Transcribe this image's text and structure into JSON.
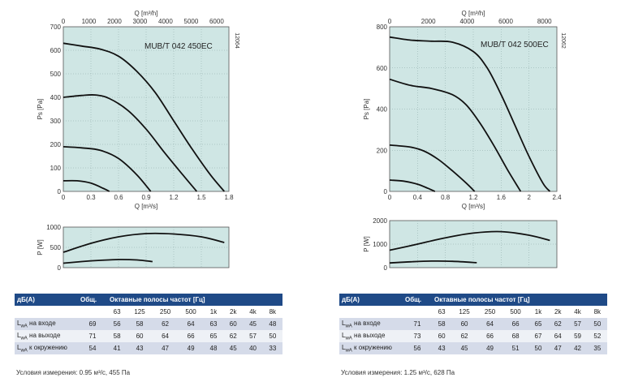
{
  "panels": [
    {
      "model": "MUB/T 042 450EC",
      "code": "12064",
      "ps_chart": {
        "type": "line",
        "xlabel": "Q [m³/s]",
        "x2label": "Q [m³/h]",
        "ylabel": "Ps [Pa]",
        "xlim": [
          0,
          1.8
        ],
        "ylim": [
          0,
          700
        ],
        "x_ticks": [
          "0",
          "0.3",
          "0.6",
          "0.9",
          "1.2",
          "1.5",
          "1.8"
        ],
        "x2_ticks": [
          "0",
          "1000",
          "2000",
          "3000",
          "4000",
          "5000",
          "6000"
        ],
        "x2_max": 6480,
        "y_ticks": [
          "0",
          "100",
          "200",
          "300",
          "400",
          "500",
          "600",
          "700"
        ],
        "series": [
          {
            "x": [
              0,
              0.2,
              0.4,
              0.6,
              0.8,
              1.0,
              1.2,
              1.4,
              1.6,
              1.75
            ],
            "y": [
              630,
              618,
              605,
              575,
              510,
              420,
              300,
              180,
              70,
              0
            ]
          },
          {
            "x": [
              0,
              0.2,
              0.35,
              0.5,
              0.7,
              0.9,
              1.1,
              1.3,
              1.45
            ],
            "y": [
              400,
              408,
              410,
              395,
              345,
              265,
              165,
              70,
              0
            ]
          },
          {
            "x": [
              0,
              0.2,
              0.4,
              0.6,
              0.8,
              0.95
            ],
            "y": [
              190,
              185,
              175,
              140,
              70,
              0
            ]
          },
          {
            "x": [
              0,
              0.15,
              0.3,
              0.45,
              0.5
            ],
            "y": [
              45,
              45,
              35,
              10,
              0
            ]
          }
        ]
      },
      "p_chart": {
        "type": "line",
        "ylabel": "P [W]",
        "xlim": [
          0,
          1.8
        ],
        "ylim": [
          0,
          1000
        ],
        "y_ticks": [
          "0",
          "500",
          "1000"
        ],
        "series": [
          {
            "x": [
              0,
              0.3,
              0.6,
              0.9,
              1.2,
              1.5,
              1.75
            ],
            "y": [
              380,
              600,
              760,
              840,
              830,
              760,
              620
            ]
          },
          {
            "x": [
              0,
              0.2,
              0.4,
              0.6,
              0.8,
              0.97
            ],
            "y": [
              110,
              150,
              180,
              200,
              190,
              150
            ]
          }
        ]
      },
      "sound": {
        "header_label": "дБ(A)",
        "header_total": "Общ.",
        "header_bands": "Октавные полосы частот [Гц]",
        "freqs": [
          "63",
          "125",
          "250",
          "500",
          "1k",
          "2k",
          "4k",
          "8k"
        ],
        "rows": [
          {
            "sub": "wA",
            "label": " на входе",
            "total": "69",
            "values": [
              "56",
              "58",
              "62",
              "64",
              "63",
              "60",
              "45",
              "48"
            ]
          },
          {
            "sub": "wA",
            "label": " на выходе",
            "total": "71",
            "values": [
              "58",
              "60",
              "64",
              "66",
              "65",
              "62",
              "57",
              "50"
            ]
          },
          {
            "sub": "wA",
            "label": " к окружению",
            "total": "54",
            "values": [
              "41",
              "43",
              "47",
              "49",
              "48",
              "45",
              "40",
              "33"
            ]
          }
        ],
        "condition": "Условия измерения: 0.95 м³/с, 455 Па"
      }
    },
    {
      "model": "MUB/T 042 500EC",
      "code": "12062",
      "ps_chart": {
        "type": "line",
        "xlabel": "Q [m³/s]",
        "x2label": "Q [m³/h]",
        "ylabel": "Ps [Pa]",
        "xlim": [
          0,
          2.4
        ],
        "ylim": [
          0,
          800
        ],
        "x_ticks": [
          "0",
          "0.4",
          "0.8",
          "1.2",
          "1.6",
          "2",
          "2.4"
        ],
        "x2_ticks": [
          "0",
          "2000",
          "4000",
          "6000",
          "8000"
        ],
        "x2_max": 8640,
        "y_ticks": [
          "0",
          "200",
          "400",
          "600",
          "800"
        ],
        "series": [
          {
            "x": [
              0,
              0.3,
              0.6,
              0.9,
              1.2,
              1.4,
              1.6,
              1.8,
              2.0,
              2.2,
              2.3
            ],
            "y": [
              750,
              735,
              730,
              725,
              680,
              600,
              470,
              320,
              170,
              40,
              0
            ]
          },
          {
            "x": [
              0,
              0.3,
              0.6,
              0.9,
              1.1,
              1.3,
              1.5,
              1.7,
              1.88
            ],
            "y": [
              545,
              515,
              500,
              470,
              420,
              330,
              220,
              100,
              0
            ]
          },
          {
            "x": [
              0,
              0.3,
              0.5,
              0.7,
              0.9,
              1.1,
              1.22
            ],
            "y": [
              225,
              215,
              195,
              155,
              100,
              40,
              0
            ]
          },
          {
            "x": [
              0,
              0.2,
              0.4,
              0.55,
              0.65
            ],
            "y": [
              55,
              50,
              35,
              15,
              0
            ]
          }
        ]
      },
      "p_chart": {
        "type": "line",
        "ylabel": "P [W]",
        "xlim": [
          0,
          2.4
        ],
        "ylim": [
          0,
          2000
        ],
        "y_ticks": [
          "0",
          "1000",
          "2000"
        ],
        "series": [
          {
            "x": [
              0,
              0.4,
              0.8,
              1.2,
              1.6,
              2.0,
              2.3
            ],
            "y": [
              740,
              1000,
              1270,
              1470,
              1530,
              1380,
              1160
            ]
          },
          {
            "x": [
              0,
              0.3,
              0.6,
              0.9,
              1.25
            ],
            "y": [
              200,
              250,
              280,
              270,
              210
            ]
          }
        ]
      },
      "sound": {
        "header_label": "дБ(A)",
        "header_total": "Общ.",
        "header_bands": "Октавные полосы частот [Гц]",
        "freqs": [
          "63",
          "125",
          "250",
          "500",
          "1k",
          "2k",
          "4k",
          "8k"
        ],
        "rows": [
          {
            "sub": "wA",
            "label": " на входе",
            "total": "71",
            "values": [
              "58",
              "60",
              "64",
              "66",
              "65",
              "62",
              "57",
              "50"
            ]
          },
          {
            "sub": "wA",
            "label": " на выходе",
            "total": "73",
            "values": [
              "60",
              "62",
              "66",
              "68",
              "67",
              "64",
              "59",
              "52"
            ]
          },
          {
            "sub": "wA",
            "label": " к окружению",
            "total": "56",
            "values": [
              "43",
              "45",
              "49",
              "51",
              "50",
              "47",
              "42",
              "35"
            ]
          }
        ],
        "condition": "Условия измерения: 1.25 м³/с, 628 Па"
      }
    }
  ]
}
